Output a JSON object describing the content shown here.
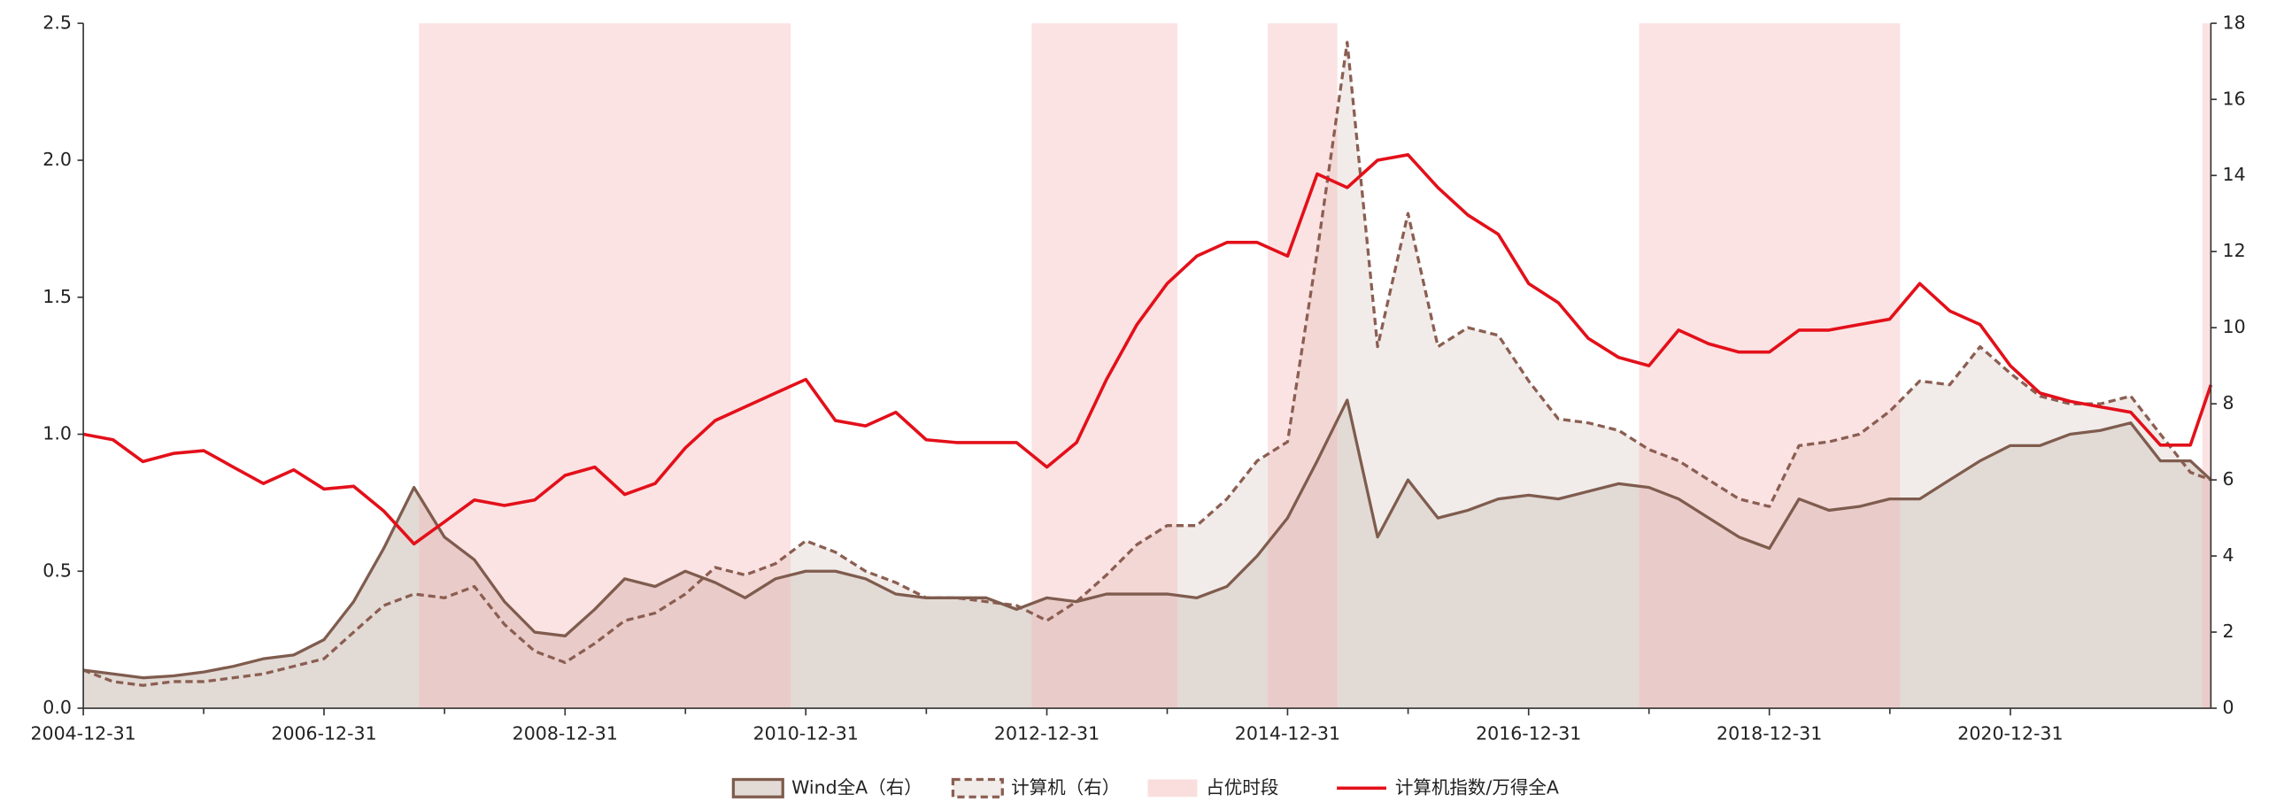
{
  "chart_data": {
    "type": "line",
    "x": [
      "2004-12-31",
      "2005-03-31",
      "2005-06-30",
      "2005-09-30",
      "2005-12-31",
      "2006-03-31",
      "2006-06-30",
      "2006-09-30",
      "2006-12-31",
      "2007-03-31",
      "2007-06-30",
      "2007-09-30",
      "2007-12-31",
      "2008-03-31",
      "2008-06-30",
      "2008-09-30",
      "2008-12-31",
      "2009-03-31",
      "2009-06-30",
      "2009-09-30",
      "2009-12-31",
      "2010-03-31",
      "2010-06-30",
      "2010-09-30",
      "2010-12-31",
      "2011-03-31",
      "2011-06-30",
      "2011-09-30",
      "2011-12-31",
      "2012-03-31",
      "2012-06-30",
      "2012-09-30",
      "2012-12-31",
      "2013-03-31",
      "2013-06-30",
      "2013-09-30",
      "2013-12-31",
      "2014-03-31",
      "2014-06-30",
      "2014-09-30",
      "2014-12-31",
      "2015-03-31",
      "2015-06-30",
      "2015-09-30",
      "2015-12-31",
      "2016-03-31",
      "2016-06-30",
      "2016-09-30",
      "2016-12-31",
      "2017-03-31",
      "2017-06-30",
      "2017-09-30",
      "2017-12-31",
      "2018-03-31",
      "2018-06-30",
      "2018-09-30",
      "2018-12-31",
      "2019-03-31",
      "2019-06-30",
      "2019-09-30",
      "2019-12-31",
      "2020-03-31",
      "2020-06-30",
      "2020-09-30",
      "2020-12-31",
      "2021-03-31",
      "2021-06-30",
      "2021-09-30",
      "2021-12-31",
      "2022-03-31",
      "2022-06-30",
      "2022-08-31"
    ],
    "xlim": [
      "2004-12-31",
      "2022-08-31"
    ],
    "xticks": [
      "2004-12-31",
      "2006-12-31",
      "2008-12-31",
      "2010-12-31",
      "2012-12-31",
      "2014-12-31",
      "2016-12-31",
      "2018-12-31",
      "2020-12-31"
    ],
    "ylim": [
      0,
      2.5
    ],
    "yticks": [
      {
        "value": 0,
        "label": "0.0"
      },
      0.5,
      {
        "value": 1,
        "label": "1.0"
      },
      1.5,
      {
        "value": 2,
        "label": "2.0"
      },
      2.5
    ],
    "y2lim": [
      0,
      18
    ],
    "y2ticks": [
      0,
      2,
      4,
      6,
      8,
      10,
      12,
      14,
      16,
      18
    ],
    "series": [
      {
        "name": "Wind全A（右）",
        "axis": "y2",
        "style": "area",
        "color": "#7f5c4e",
        "fill": "#e2dad5",
        "dashed": false,
        "values": [
          1.0,
          0.9,
          0.8,
          0.85,
          0.95,
          1.1,
          1.3,
          1.4,
          1.8,
          2.8,
          4.2,
          5.8,
          4.5,
          3.9,
          2.8,
          2.0,
          1.9,
          2.6,
          3.4,
          3.2,
          3.6,
          3.3,
          2.9,
          3.4,
          3.6,
          3.6,
          3.4,
          3.0,
          2.9,
          2.9,
          2.9,
          2.6,
          2.9,
          2.8,
          3.0,
          3.0,
          3.0,
          2.9,
          3.2,
          4.0,
          5.0,
          6.5,
          8.1,
          4.5,
          6.0,
          5.0,
          5.2,
          5.5,
          5.6,
          5.5,
          5.7,
          5.9,
          5.8,
          5.5,
          5.0,
          4.5,
          4.2,
          5.5,
          5.2,
          5.3,
          5.5,
          5.5,
          6.0,
          6.5,
          6.9,
          6.9,
          7.2,
          7.3,
          7.5,
          6.5,
          6.5,
          6.0
        ]
      },
      {
        "name": "计算机（右）",
        "axis": "y2",
        "style": "area",
        "color": "#8b5e52",
        "fill": "#f1ece9",
        "dashed": true,
        "values": [
          1.0,
          0.7,
          0.6,
          0.7,
          0.7,
          0.8,
          0.9,
          1.1,
          1.3,
          2.0,
          2.7,
          3.0,
          2.9,
          3.2,
          2.2,
          1.5,
          1.2,
          1.7,
          2.3,
          2.5,
          3.0,
          3.7,
          3.5,
          3.8,
          4.4,
          4.1,
          3.6,
          3.3,
          2.9,
          2.9,
          2.8,
          2.7,
          2.3,
          2.8,
          3.5,
          4.3,
          4.8,
          4.8,
          5.5,
          6.5,
          7.0,
          12,
          17.5,
          9.5,
          13.0,
          9.5,
          10.0,
          9.8,
          8.6,
          7.6,
          7.5,
          7.3,
          6.8,
          6.5,
          6.0,
          5.5,
          5.3,
          6.9,
          7.0,
          7.2,
          7.8,
          8.6,
          8.5,
          9.5,
          8.8,
          8.2,
          8.0,
          8.0,
          8.2,
          7.2,
          6.2,
          6.0
        ]
      },
      {
        "name": "计算机指数/万得全A",
        "axis": "y",
        "style": "line",
        "color": "#e3101a",
        "dashed": false,
        "values": [
          1.0,
          0.98,
          0.9,
          0.93,
          0.94,
          0.88,
          0.82,
          0.87,
          0.8,
          0.81,
          0.72,
          0.6,
          0.68,
          0.76,
          0.74,
          0.76,
          0.85,
          0.88,
          0.78,
          0.82,
          0.95,
          1.05,
          1.1,
          1.15,
          1.2,
          1.05,
          1.03,
          1.08,
          0.98,
          0.97,
          0.97,
          0.97,
          0.88,
          0.97,
          1.2,
          1.4,
          1.55,
          1.65,
          1.7,
          1.7,
          1.65,
          1.95,
          1.9,
          2.0,
          2.02,
          1.9,
          1.8,
          1.73,
          1.55,
          1.48,
          1.35,
          1.28,
          1.25,
          1.38,
          1.33,
          1.3,
          1.3,
          1.38,
          1.38,
          1.4,
          1.42,
          1.55,
          1.45,
          1.4,
          1.25,
          1.15,
          1.12,
          1.1,
          1.08,
          0.96,
          0.96,
          1.18
        ]
      }
    ],
    "periods": {
      "name": "占优时段",
      "color": "#f4b6b6",
      "ranges": [
        [
          "2007-10-15",
          "2010-11-15"
        ],
        [
          "2012-11-15",
          "2014-01-31"
        ],
        [
          "2014-11-01",
          "2015-05-31"
        ],
        [
          "2017-12-01",
          "2020-01-31"
        ],
        [
          "2022-08-05",
          "2022-08-31"
        ]
      ]
    }
  }
}
